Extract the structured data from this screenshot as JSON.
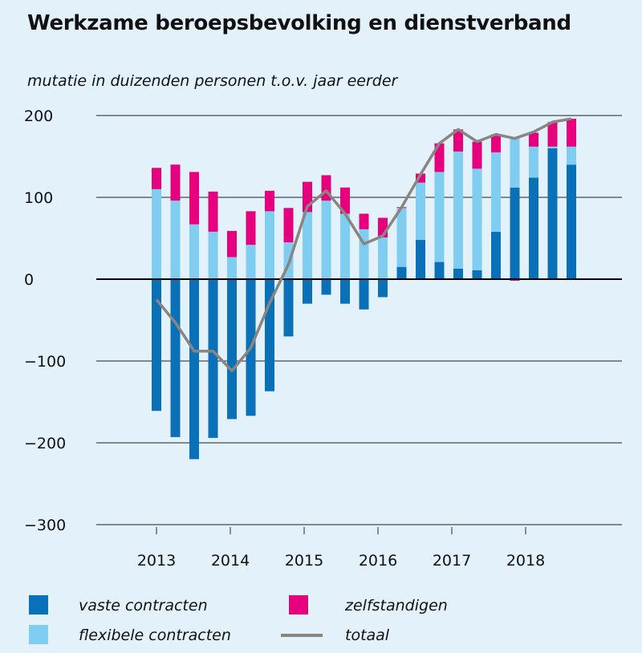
{
  "title": "Werkzame beroepsbevolking en dienstverband",
  "subtitle": "mutatie in duizenden personen t.o.v. jaar eerder",
  "colors": {
    "background": "#e3f1fb",
    "vaste": "#0a71b9",
    "flexibele": "#7fcdf0",
    "zelfstandigen": "#e6007e",
    "totaal": "#8a8580",
    "gridline": "#4a4a4a",
    "zeroline": "#000000"
  },
  "chart_data": {
    "type": "bar",
    "stacked": true,
    "title": "Werkzame beroepsbevolking en dienstverband",
    "subtitle": "mutatie in duizenden personen t.o.v. jaar eerder",
    "ylim": [
      -300,
      200
    ],
    "yticks": [
      200,
      100,
      0,
      -100,
      -200,
      -300
    ],
    "ytick_labels": [
      "200",
      "100",
      "0",
      "−100",
      "−200",
      "−300"
    ],
    "xtick_labels": [
      "2013",
      "2014",
      "2015",
      "2016",
      "2017",
      "2018"
    ],
    "grid": true,
    "legend_position": "bottom",
    "categories": [
      "2013Q1",
      "2013Q2",
      "2013Q3",
      "2013Q4",
      "2014Q1",
      "2014Q2",
      "2014Q3",
      "2014Q4",
      "2015Q1",
      "2015Q2",
      "2015Q3",
      "2015Q4",
      "2016Q1",
      "2016Q2",
      "2016Q3",
      "2016Q4",
      "2017Q1",
      "2017Q2",
      "2017Q3",
      "2017Q4",
      "2018Q1",
      "2018Q2"
    ],
    "series": [
      {
        "name": "vaste contracten",
        "kind": "bar",
        "values": [
          -161,
          -193,
          -220,
          -194,
          -171,
          -167,
          -137,
          -70,
          -30,
          -19,
          -30,
          -37,
          -22,
          15,
          48,
          21,
          13,
          11,
          58,
          112,
          124,
          160
        ]
      },
      {
        "name": "flexibele contracten",
        "kind": "bar",
        "values": [
          110,
          96,
          67,
          58,
          27,
          42,
          83,
          45,
          82,
          96,
          80,
          61,
          51,
          72,
          70,
          110,
          143,
          124,
          97,
          60,
          38,
          0
        ]
      },
      {
        "name": "zelfstandigen",
        "kind": "bar",
        "values": [
          26,
          44,
          64,
          49,
          32,
          41,
          25,
          42,
          37,
          31,
          32,
          19,
          24,
          1,
          11,
          35,
          27,
          33,
          22,
          0,
          17,
          30
        ]
      },
      {
        "name": "totaal",
        "kind": "line",
        "values": [
          -25,
          -53,
          -88,
          -88,
          -112,
          -84,
          -29,
          18,
          89,
          108,
          80,
          43,
          53,
          88,
          128,
          166,
          183,
          168,
          177,
          172,
          180,
          192
        ]
      }
    ],
    "bar_extras": [
      {
        "index": 19,
        "series": "zelfstandigen",
        "value": -2
      },
      {
        "index": 21,
        "series": "flexibele contracten",
        "value": 2
      },
      {
        "index": 22,
        "series": "vaste contracten",
        "value": 140
      },
      {
        "index": 22,
        "series": "flexibele contracten",
        "value": 22
      },
      {
        "index": 22,
        "series": "zelfstandigen",
        "value": 34
      }
    ],
    "totaal_last": 196
  },
  "legend": [
    {
      "label": "vaste contracten",
      "color_key": "vaste",
      "shape": "square"
    },
    {
      "label": "zelfstandigen",
      "color_key": "zelfstandigen",
      "shape": "square"
    },
    {
      "label": "flexibele contracten",
      "color_key": "flexibele",
      "shape": "square"
    },
    {
      "label": "totaal",
      "color_key": "totaal",
      "shape": "line"
    }
  ]
}
